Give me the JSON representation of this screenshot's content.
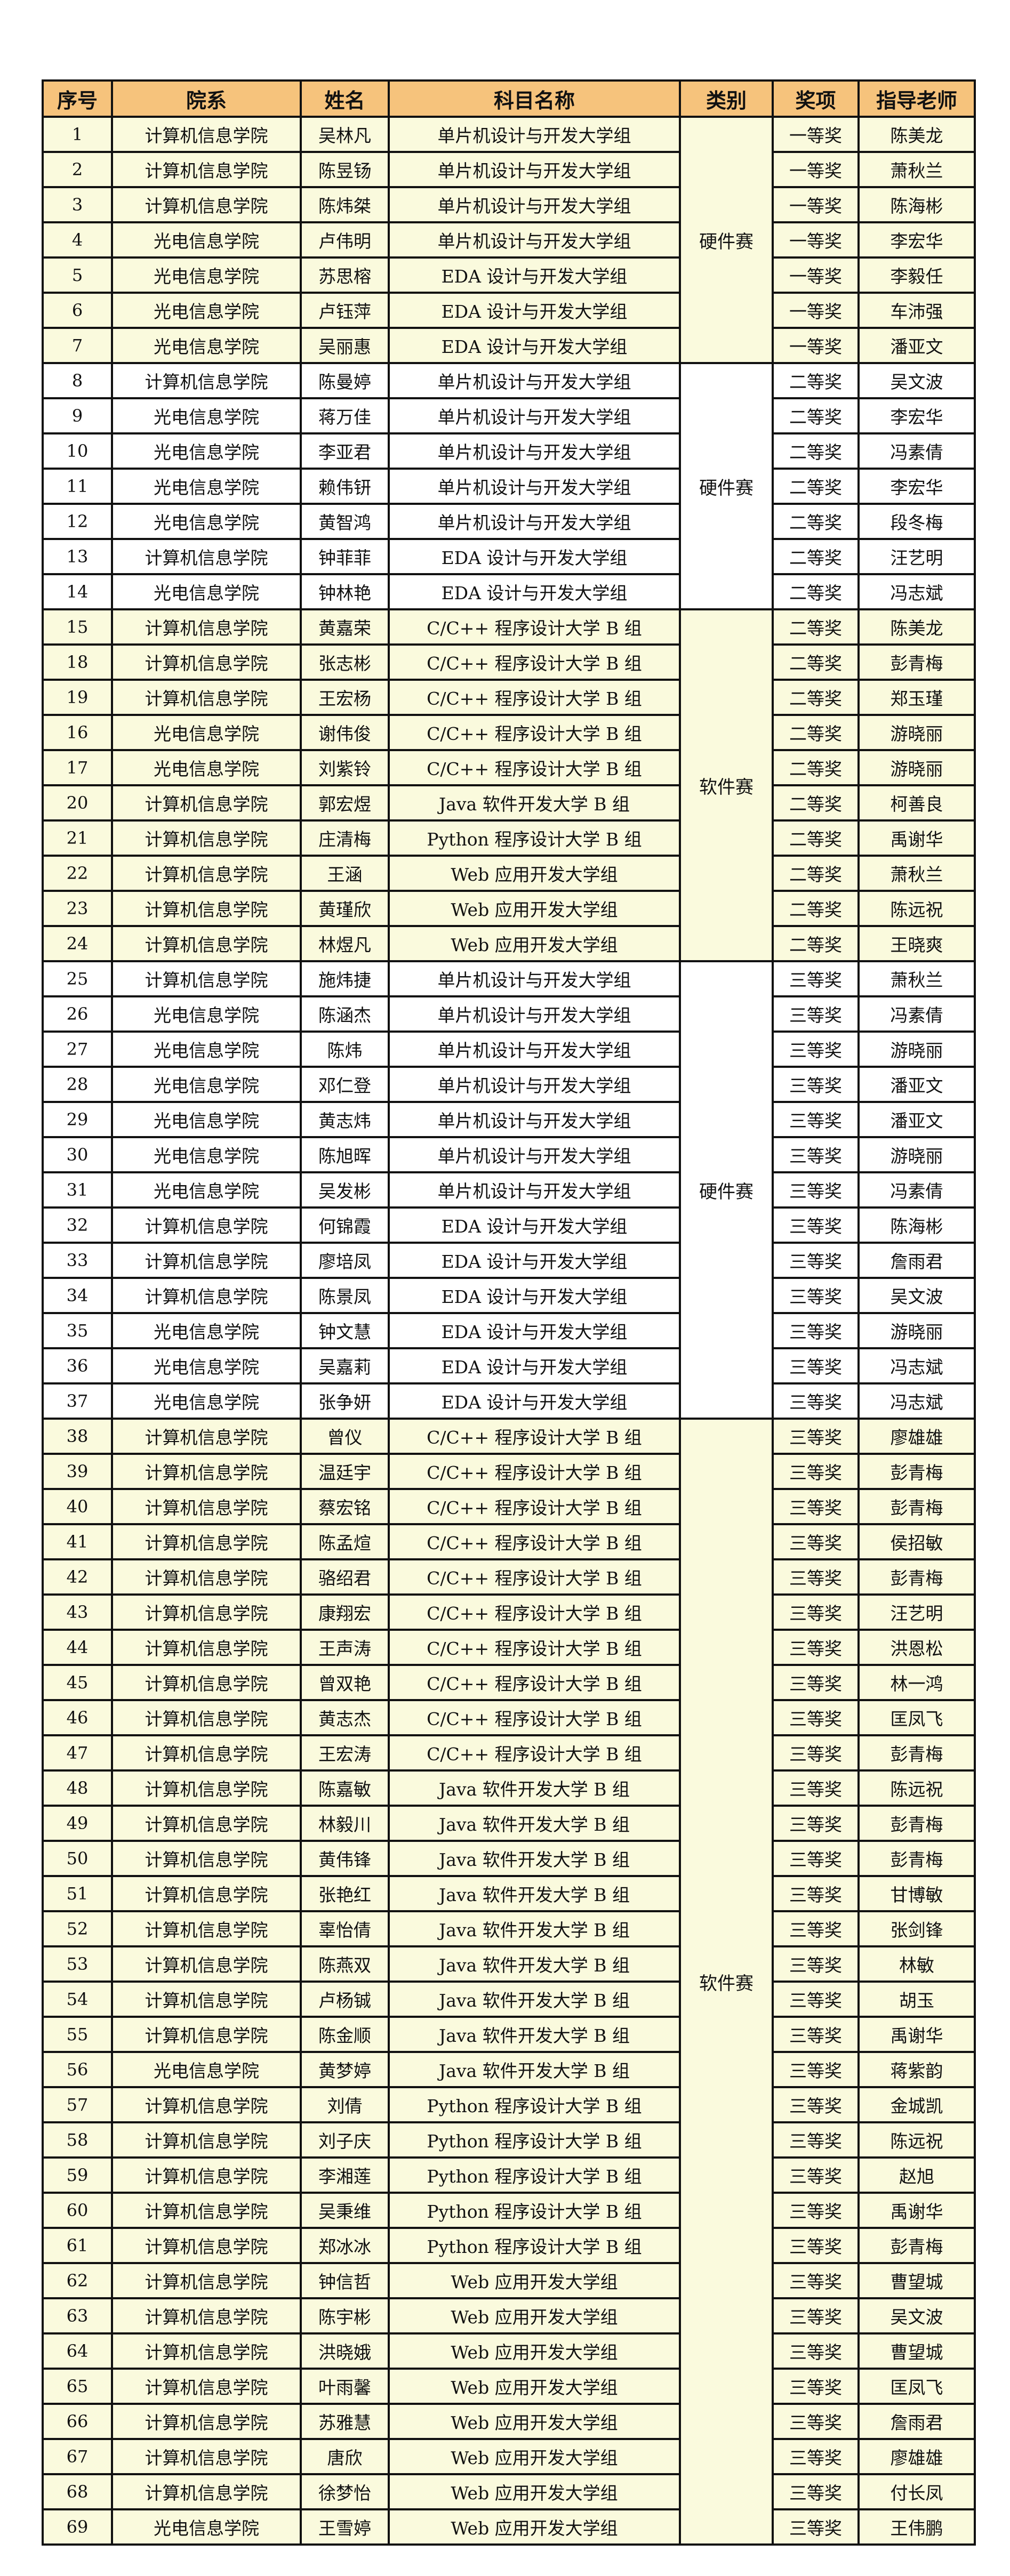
{
  "headers": [
    "序号",
    "院系",
    "姓名",
    "科目名称",
    "类别",
    "奖项",
    "指导老师"
  ],
  "colors": {
    "header_bg": "#f6c37c",
    "row_yellow": "#fafadd",
    "row_white": "#ffffff"
  },
  "groups": [
    {
      "category": "硬件赛",
      "shade": "yellow",
      "rows": [
        [
          "1",
          "计算机信息学院",
          "吴林凡",
          "单片机设计与开发大学组",
          "一等奖",
          "陈美龙"
        ],
        [
          "2",
          "计算机信息学院",
          "陈昱钖",
          "单片机设计与开发大学组",
          "一等奖",
          "萧秋兰"
        ],
        [
          "3",
          "计算机信息学院",
          "陈炜桀",
          "单片机设计与开发大学组",
          "一等奖",
          "陈海彬"
        ],
        [
          "4",
          "光电信息学院",
          "卢伟明",
          "单片机设计与开发大学组",
          "一等奖",
          "李宏华"
        ],
        [
          "5",
          "光电信息学院",
          "苏思榕",
          "EDA 设计与开发大学组",
          "一等奖",
          "李毅任"
        ],
        [
          "6",
          "光电信息学院",
          "卢钰萍",
          "EDA 设计与开发大学组",
          "一等奖",
          "车沛强"
        ],
        [
          "7",
          "光电信息学院",
          "吴丽惠",
          "EDA 设计与开发大学组",
          "一等奖",
          "潘亚文"
        ]
      ]
    },
    {
      "category": "硬件赛",
      "shade": "white",
      "rows": [
        [
          "8",
          "计算机信息学院",
          "陈曼婷",
          "单片机设计与开发大学组",
          "二等奖",
          "吴文波"
        ],
        [
          "9",
          "光电信息学院",
          "蒋万佳",
          "单片机设计与开发大学组",
          "二等奖",
          "李宏华"
        ],
        [
          "10",
          "光电信息学院",
          "李亚君",
          "单片机设计与开发大学组",
          "二等奖",
          "冯素倩"
        ],
        [
          "11",
          "光电信息学院",
          "赖伟钘",
          "单片机设计与开发大学组",
          "二等奖",
          "李宏华"
        ],
        [
          "12",
          "光电信息学院",
          "黄智鸿",
          "单片机设计与开发大学组",
          "二等奖",
          "段冬梅"
        ],
        [
          "13",
          "计算机信息学院",
          "钟菲菲",
          "EDA 设计与开发大学组",
          "二等奖",
          "汪艺明"
        ],
        [
          "14",
          "光电信息学院",
          "钟林艳",
          "EDA 设计与开发大学组",
          "二等奖",
          "冯志斌"
        ]
      ]
    },
    {
      "category": "软件赛",
      "shade": "yellow",
      "rows": [
        [
          "15",
          "计算机信息学院",
          "黄嘉荣",
          "C/C++ 程序设计大学 B 组",
          "二等奖",
          "陈美龙"
        ],
        [
          "18",
          "计算机信息学院",
          "张志彬",
          "C/C++ 程序设计大学 B 组",
          "二等奖",
          "彭青梅"
        ],
        [
          "19",
          "计算机信息学院",
          "王宏杨",
          "C/C++ 程序设计大学 B 组",
          "二等奖",
          "郑玉瑾"
        ],
        [
          "16",
          "光电信息学院",
          "谢伟俊",
          "C/C++ 程序设计大学 B 组",
          "二等奖",
          "游晓丽"
        ],
        [
          "17",
          "光电信息学院",
          "刘紫铃",
          "C/C++ 程序设计大学 B 组",
          "二等奖",
          "游晓丽"
        ],
        [
          "20",
          "计算机信息学院",
          "郭宏煜",
          "Java 软件开发大学 B 组",
          "二等奖",
          "柯善良"
        ],
        [
          "21",
          "计算机信息学院",
          "庄清梅",
          "Python 程序设计大学 B 组",
          "二等奖",
          "禹谢华"
        ],
        [
          "22",
          "计算机信息学院",
          "王涵",
          "Web 应用开发大学组",
          "二等奖",
          "萧秋兰"
        ],
        [
          "23",
          "计算机信息学院",
          "黄瑾欣",
          "Web 应用开发大学组",
          "二等奖",
          "陈远祝"
        ],
        [
          "24",
          "计算机信息学院",
          "林煜凡",
          "Web 应用开发大学组",
          "二等奖",
          "王晓爽"
        ]
      ]
    },
    {
      "category": "硬件赛",
      "shade": "white",
      "rows": [
        [
          "25",
          "计算机信息学院",
          "施炜捷",
          "单片机设计与开发大学组",
          "三等奖",
          "萧秋兰"
        ],
        [
          "26",
          "光电信息学院",
          "陈涵杰",
          "单片机设计与开发大学组",
          "三等奖",
          "冯素倩"
        ],
        [
          "27",
          "光电信息学院",
          "陈炜",
          "单片机设计与开发大学组",
          "三等奖",
          "游晓丽"
        ],
        [
          "28",
          "光电信息学院",
          "邓仁登",
          "单片机设计与开发大学组",
          "三等奖",
          "潘亚文"
        ],
        [
          "29",
          "光电信息学院",
          "黄志炜",
          "单片机设计与开发大学组",
          "三等奖",
          "潘亚文"
        ],
        [
          "30",
          "光电信息学院",
          "陈旭晖",
          "单片机设计与开发大学组",
          "三等奖",
          "游晓丽"
        ],
        [
          "31",
          "光电信息学院",
          "吴发彬",
          "单片机设计与开发大学组",
          "三等奖",
          "冯素倩"
        ],
        [
          "32",
          "计算机信息学院",
          "何锦霞",
          "EDA 设计与开发大学组",
          "三等奖",
          "陈海彬"
        ],
        [
          "33",
          "计算机信息学院",
          "廖培凤",
          "EDA 设计与开发大学组",
          "三等奖",
          "詹雨君"
        ],
        [
          "34",
          "计算机信息学院",
          "陈景凤",
          "EDA 设计与开发大学组",
          "三等奖",
          "吴文波"
        ],
        [
          "35",
          "光电信息学院",
          "钟文慧",
          "EDA 设计与开发大学组",
          "三等奖",
          "游晓丽"
        ],
        [
          "36",
          "光电信息学院",
          "吴嘉莉",
          "EDA 设计与开发大学组",
          "三等奖",
          "冯志斌"
        ],
        [
          "37",
          "光电信息学院",
          "张争妍",
          "EDA 设计与开发大学组",
          "三等奖",
          "冯志斌"
        ]
      ]
    },
    {
      "category": "软件赛",
      "shade": "yellow",
      "rows": [
        [
          "38",
          "计算机信息学院",
          "曾仪",
          "C/C++ 程序设计大学 B 组",
          "三等奖",
          "廖雄雄"
        ],
        [
          "39",
          "计算机信息学院",
          "温廷宇",
          "C/C++ 程序设计大学 B 组",
          "三等奖",
          "彭青梅"
        ],
        [
          "40",
          "计算机信息学院",
          "蔡宏铭",
          "C/C++ 程序设计大学 B 组",
          "三等奖",
          "彭青梅"
        ],
        [
          "41",
          "计算机信息学院",
          "陈孟煊",
          "C/C++ 程序设计大学 B 组",
          "三等奖",
          "侯招敏"
        ],
        [
          "42",
          "计算机信息学院",
          "骆绍君",
          "C/C++ 程序设计大学 B 组",
          "三等奖",
          "彭青梅"
        ],
        [
          "43",
          "计算机信息学院",
          "康翔宏",
          "C/C++ 程序设计大学 B 组",
          "三等奖",
          "汪艺明"
        ],
        [
          "44",
          "计算机信息学院",
          "王声涛",
          "C/C++ 程序设计大学 B 组",
          "三等奖",
          "洪恩松"
        ],
        [
          "45",
          "计算机信息学院",
          "曾双艳",
          "C/C++ 程序设计大学 B 组",
          "三等奖",
          "林一鸿"
        ],
        [
          "46",
          "计算机信息学院",
          "黄志杰",
          "C/C++ 程序设计大学 B 组",
          "三等奖",
          "匡凤飞"
        ],
        [
          "47",
          "计算机信息学院",
          "王宏涛",
          "C/C++ 程序设计大学 B 组",
          "三等奖",
          "彭青梅"
        ],
        [
          "48",
          "计算机信息学院",
          "陈嘉敏",
          "Java 软件开发大学 B 组",
          "三等奖",
          "陈远祝"
        ],
        [
          "49",
          "计算机信息学院",
          "林毅川",
          "Java 软件开发大学 B 组",
          "三等奖",
          "彭青梅"
        ],
        [
          "50",
          "计算机信息学院",
          "黄伟锋",
          "Java 软件开发大学 B 组",
          "三等奖",
          "彭青梅"
        ],
        [
          "51",
          "计算机信息学院",
          "张艳红",
          "Java 软件开发大学 B 组",
          "三等奖",
          "甘博敏"
        ],
        [
          "52",
          "计算机信息学院",
          "辜怡倩",
          "Java 软件开发大学 B 组",
          "三等奖",
          "张剑锋"
        ],
        [
          "53",
          "计算机信息学院",
          "陈燕双",
          "Java 软件开发大学 B 组",
          "三等奖",
          "林敏"
        ],
        [
          "54",
          "计算机信息学院",
          "卢杨铖",
          "Java 软件开发大学 B 组",
          "三等奖",
          "胡玉"
        ],
        [
          "55",
          "计算机信息学院",
          "陈金顺",
          "Java 软件开发大学 B 组",
          "三等奖",
          "禹谢华"
        ],
        [
          "56",
          "光电信息学院",
          "黄梦婷",
          "Java 软件开发大学 B 组",
          "三等奖",
          "蒋紫韵"
        ],
        [
          "57",
          "计算机信息学院",
          "刘倩",
          "Python 程序设计大学 B 组",
          "三等奖",
          "金城凯"
        ],
        [
          "58",
          "计算机信息学院",
          "刘子庆",
          "Python 程序设计大学 B 组",
          "三等奖",
          "陈远祝"
        ],
        [
          "59",
          "计算机信息学院",
          "李湘莲",
          "Python 程序设计大学 B 组",
          "三等奖",
          "赵旭"
        ],
        [
          "60",
          "计算机信息学院",
          "吴秉维",
          "Python 程序设计大学 B 组",
          "三等奖",
          "禹谢华"
        ],
        [
          "61",
          "计算机信息学院",
          "郑冰冰",
          "Python 程序设计大学 B 组",
          "三等奖",
          "彭青梅"
        ],
        [
          "62",
          "计算机信息学院",
          "钟信哲",
          "Web 应用开发大学组",
          "三等奖",
          "曹望城"
        ],
        [
          "63",
          "计算机信息学院",
          "陈宇彬",
          "Web 应用开发大学组",
          "三等奖",
          "吴文波"
        ],
        [
          "64",
          "计算机信息学院",
          "洪晓娥",
          "Web 应用开发大学组",
          "三等奖",
          "曹望城"
        ],
        [
          "65",
          "计算机信息学院",
          "叶雨馨",
          "Web 应用开发大学组",
          "三等奖",
          "匡凤飞"
        ],
        [
          "66",
          "计算机信息学院",
          "苏雅慧",
          "Web 应用开发大学组",
          "三等奖",
          "詹雨君"
        ],
        [
          "67",
          "计算机信息学院",
          "唐欣",
          "Web 应用开发大学组",
          "三等奖",
          "廖雄雄"
        ],
        [
          "68",
          "计算机信息学院",
          "徐梦怡",
          "Web 应用开发大学组",
          "三等奖",
          "付长凤"
        ],
        [
          "69",
          "光电信息学院",
          "王雪婷",
          "Web 应用开发大学组",
          "三等奖",
          "王伟鹏"
        ]
      ]
    }
  ]
}
